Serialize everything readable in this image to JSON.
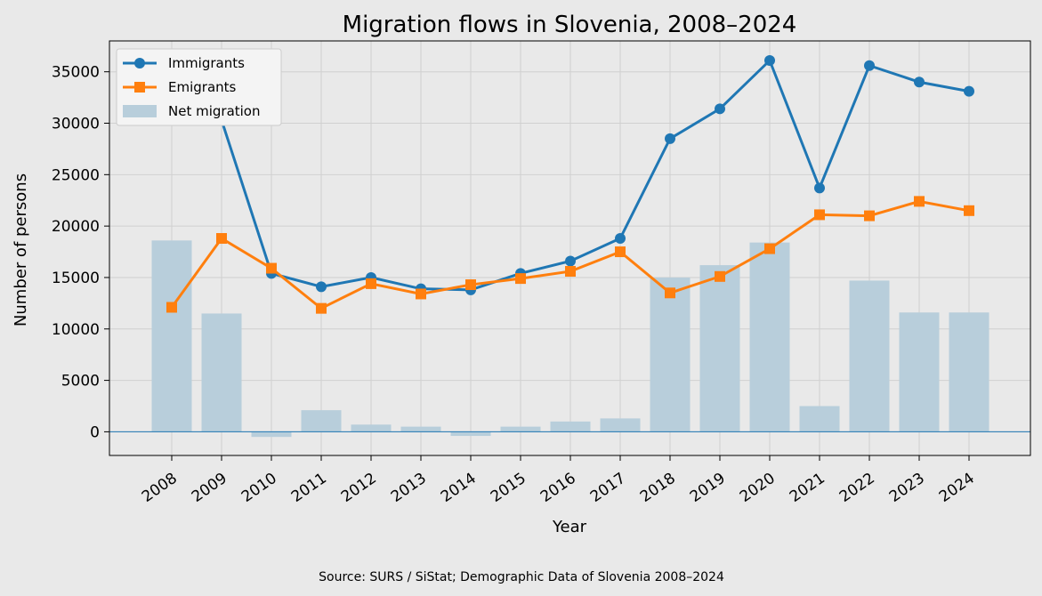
{
  "chart_data": {
    "type": "bar+line",
    "title": "Migration flows in Slovenia, 2008–2024",
    "xlabel": "Year",
    "ylabel": "Number of persons",
    "source": "Source: SURS / SiStat; Demographic Data of Slovenia 2008–2024",
    "categories": [
      "2008",
      "2009",
      "2010",
      "2011",
      "2012",
      "2013",
      "2014",
      "2015",
      "2016",
      "2017",
      "2018",
      "2019",
      "2020",
      "2021",
      "2022",
      "2023",
      "2024"
    ],
    "ylim": [
      -2300,
      38000
    ],
    "yticks": [
      0,
      5000,
      10000,
      15000,
      20000,
      25000,
      30000,
      35000
    ],
    "grid": true,
    "legend_position": "top-left",
    "series": [
      {
        "name": "Immigrants",
        "kind": "line",
        "marker": "circle",
        "color": "#1f77b4",
        "values": [
          30700,
          30300,
          15400,
          14100,
          15000,
          13900,
          13800,
          15400,
          16600,
          18800,
          28500,
          31400,
          36100,
          23700,
          35600,
          34000,
          33100
        ]
      },
      {
        "name": "Emigrants",
        "kind": "line",
        "marker": "square",
        "color": "#ff7f0e",
        "values": [
          12100,
          18800,
          15900,
          12000,
          14400,
          13400,
          14300,
          14900,
          15600,
          17500,
          13500,
          15100,
          17800,
          21100,
          21000,
          22400,
          21500
        ]
      },
      {
        "name": "Net migration",
        "kind": "bar",
        "color": "#b8cedb",
        "values": [
          18600,
          11500,
          -500,
          2100,
          700,
          500,
          -400,
          500,
          1000,
          1300,
          15000,
          16200,
          18400,
          2500,
          14700,
          11600,
          11600
        ]
      }
    ]
  }
}
